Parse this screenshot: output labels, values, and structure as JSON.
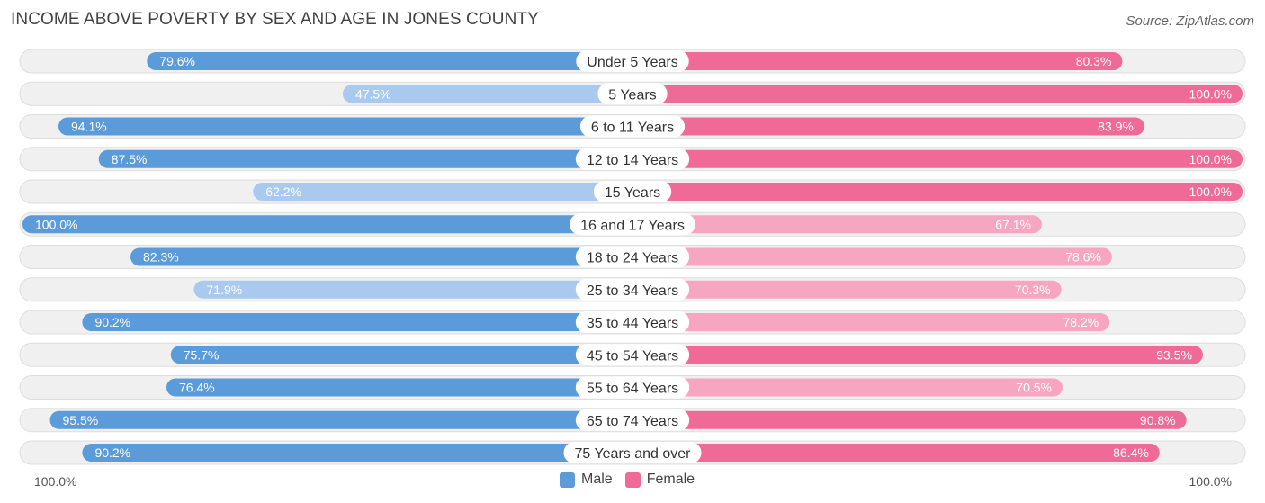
{
  "chart_data": {
    "type": "bar",
    "orientation": "horizontal-diverging",
    "title": "INCOME ABOVE POVERTY BY SEX AND AGE IN JONES COUNTY",
    "source": "Source: ZipAtlas.com",
    "categories": [
      "Under 5 Years",
      "5 Years",
      "6 to 11 Years",
      "12 to 14 Years",
      "15 Years",
      "16 and 17 Years",
      "18 to 24 Years",
      "25 to 34 Years",
      "35 to 44 Years",
      "45 to 54 Years",
      "55 to 64 Years",
      "65 to 74 Years",
      "75 Years and over"
    ],
    "series": [
      {
        "name": "Male",
        "values": [
          79.6,
          47.5,
          94.1,
          87.5,
          62.2,
          100.0,
          82.3,
          71.9,
          90.2,
          75.7,
          76.4,
          95.5,
          90.2
        ],
        "labels": [
          "79.6%",
          "47.5%",
          "94.1%",
          "87.5%",
          "62.2%",
          "100.0%",
          "82.3%",
          "71.9%",
          "90.2%",
          "75.7%",
          "76.4%",
          "95.5%",
          "90.2%"
        ]
      },
      {
        "name": "Female",
        "values": [
          80.3,
          100.0,
          83.9,
          100.0,
          100.0,
          67.1,
          78.6,
          70.3,
          78.2,
          93.5,
          70.5,
          90.8,
          86.4
        ],
        "labels": [
          "80.3%",
          "100.0%",
          "83.9%",
          "100.0%",
          "100.0%",
          "67.1%",
          "78.6%",
          "70.3%",
          "78.2%",
          "93.5%",
          "70.5%",
          "90.8%",
          "86.4%"
        ]
      }
    ],
    "xlim": [
      0,
      100
    ],
    "axis_min_label": "100.0%",
    "axis_max_label": "100.0%",
    "legend": {
      "position": "bottom-center",
      "items": [
        {
          "name": "Male",
          "color": "#5b9bd9"
        },
        {
          "name": "Female",
          "color": "#f06a98"
        }
      ]
    },
    "colors": {
      "male_strong": "#5b9bd9",
      "male_light": "#a9c9ee",
      "female_strong": "#f06a98",
      "female_light": "#f7a6c2",
      "track": "#f0f0f0",
      "track_border": "#dddddd"
    }
  }
}
